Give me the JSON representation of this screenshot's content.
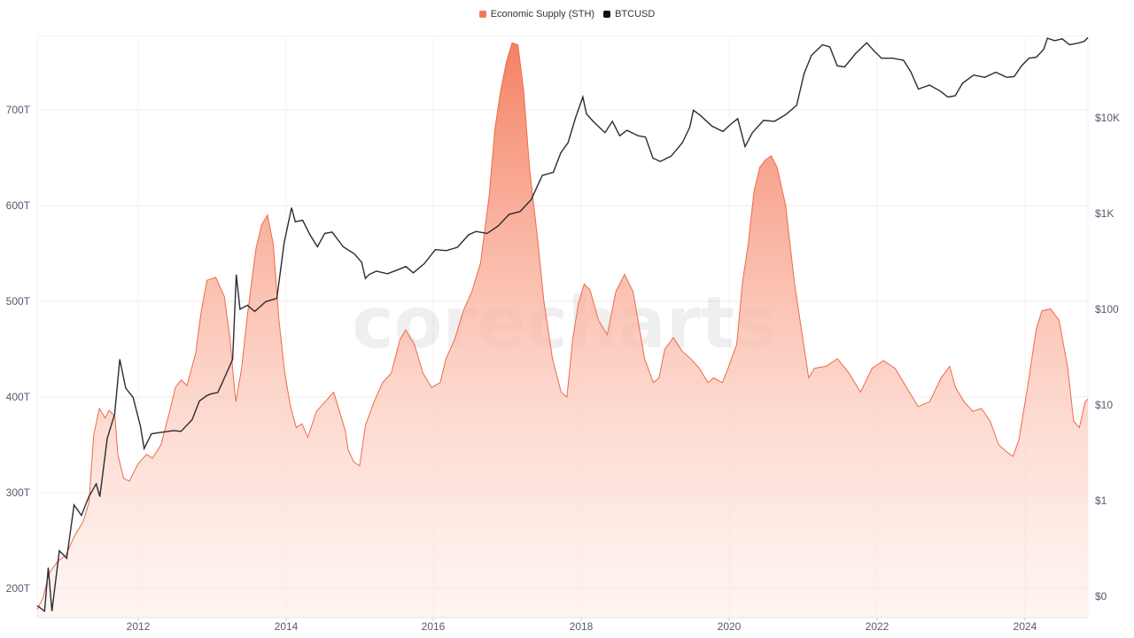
{
  "legend": {
    "items": [
      {
        "label": "Economic Supply (STH)",
        "color": "#f0785a"
      },
      {
        "label": "BTCUSD",
        "color": "#111111"
      }
    ]
  },
  "watermark": "corecharts",
  "axes": {
    "left_ticks": [
      "700T",
      "600T",
      "500T",
      "400T",
      "300T",
      "200T"
    ],
    "right_ticks": [
      "$10K",
      "$1K",
      "$100",
      "$10",
      "$1",
      "$0"
    ],
    "x_ticks": [
      "2012",
      "2014",
      "2016",
      "2018",
      "2020",
      "2022",
      "2024"
    ]
  },
  "chart_data": {
    "type": "area+line",
    "title": "",
    "xlabel": "",
    "ylabel_left": "Economic Supply (STH)",
    "ylabel_right": "BTCUSD (log)",
    "x_range": [
      2010.6,
      2024.85
    ],
    "ylim_left": [
      170,
      777
    ],
    "ylim_right_log": [
      0.07,
      200000
    ],
    "grid": true,
    "legend_position": "top-center",
    "series": [
      {
        "name": "Economic Supply (STH)",
        "axis": "left",
        "unit": "T",
        "color": "#f0785a",
        "points": [
          [
            2010.6,
            178
          ],
          [
            2010.7,
            190
          ],
          [
            2010.8,
            215
          ],
          [
            2010.95,
            228
          ],
          [
            2011.1,
            235
          ],
          [
            2011.25,
            255
          ],
          [
            2011.4,
            270
          ],
          [
            2011.5,
            290
          ],
          [
            2011.58,
            360
          ],
          [
            2011.68,
            388
          ],
          [
            2011.78,
            378
          ],
          [
            2011.85,
            386
          ],
          [
            2011.95,
            380
          ],
          [
            2012.0,
            340
          ],
          [
            2012.1,
            315
          ],
          [
            2012.2,
            312
          ],
          [
            2012.35,
            330
          ],
          [
            2012.5,
            340
          ],
          [
            2012.6,
            336
          ],
          [
            2012.75,
            350
          ],
          [
            2012.9,
            385
          ],
          [
            2013.0,
            410
          ],
          [
            2013.1,
            418
          ],
          [
            2013.2,
            412
          ],
          [
            2013.35,
            445
          ],
          [
            2013.45,
            490
          ],
          [
            2013.55,
            522
          ],
          [
            2013.7,
            525
          ],
          [
            2013.85,
            505
          ],
          [
            2013.95,
            460
          ],
          [
            2014.0,
            425
          ],
          [
            2014.05,
            395
          ],
          [
            2014.15,
            430
          ],
          [
            2014.25,
            485
          ],
          [
            2014.4,
            555
          ],
          [
            2014.5,
            580
          ],
          [
            2014.6,
            590
          ],
          [
            2014.7,
            560
          ],
          [
            2014.8,
            480
          ],
          [
            2014.9,
            425
          ],
          [
            2015.0,
            390
          ],
          [
            2015.1,
            368
          ],
          [
            2015.2,
            372
          ],
          [
            2015.3,
            358
          ],
          [
            2015.45,
            385
          ],
          [
            2015.6,
            395
          ],
          [
            2015.75,
            405
          ],
          [
            2015.85,
            385
          ],
          [
            2015.95,
            365
          ],
          [
            2016.0,
            345
          ],
          [
            2016.1,
            332
          ],
          [
            2016.2,
            328
          ],
          [
            2016.3,
            370
          ],
          [
            2016.45,
            395
          ],
          [
            2016.6,
            415
          ],
          [
            2016.75,
            425
          ],
          [
            2016.9,
            460
          ],
          [
            2017.0,
            470
          ],
          [
            2017.15,
            455
          ],
          [
            2017.3,
            425
          ],
          [
            2017.45,
            410
          ],
          [
            2017.6,
            415
          ],
          [
            2017.7,
            440
          ],
          [
            2017.85,
            460
          ],
          [
            2018.0,
            490
          ],
          [
            2018.15,
            510
          ],
          [
            2018.3,
            540
          ],
          [
            2018.45,
            610
          ],
          [
            2018.55,
            680
          ],
          [
            2018.65,
            720
          ],
          [
            2018.75,
            750
          ],
          [
            2018.85,
            770
          ],
          [
            2018.95,
            768
          ],
          [
            2019.05,
            720
          ],
          [
            2019.15,
            640
          ],
          [
            2019.3,
            560
          ],
          [
            2019.4,
            500
          ],
          [
            2019.55,
            440
          ],
          [
            2019.7,
            405
          ],
          [
            2019.8,
            400
          ],
          [
            2019.9,
            460
          ],
          [
            2020.0,
            498
          ],
          [
            2020.1,
            518
          ],
          [
            2020.2,
            512
          ],
          [
            2020.35,
            480
          ],
          [
            2020.5,
            465
          ],
          [
            2020.65,
            510
          ],
          [
            2020.8,
            528
          ],
          [
            2020.95,
            510
          ],
          [
            2021.05,
            475
          ],
          [
            2021.15,
            440
          ],
          [
            2021.3,
            415
          ],
          [
            2021.4,
            420
          ],
          [
            2021.5,
            450
          ],
          [
            2021.65,
            462
          ],
          [
            2021.8,
            448
          ],
          [
            2021.95,
            440
          ],
          [
            2022.1,
            430
          ],
          [
            2022.25,
            415
          ],
          [
            2022.35,
            420
          ],
          [
            2022.5,
            415
          ],
          [
            2022.6,
            430
          ],
          [
            2022.75,
            455
          ],
          [
            2022.85,
            520
          ],
          [
            2022.95,
            560
          ],
          [
            2023.05,
            615
          ],
          [
            2023.15,
            640
          ],
          [
            2023.25,
            648
          ],
          [
            2023.35,
            652
          ],
          [
            2023.45,
            640
          ],
          [
            2023.6,
            600
          ],
          [
            2023.75,
            520
          ],
          [
            2023.9,
            460
          ],
          [
            2024.0,
            420
          ],
          [
            2024.1,
            430
          ],
          [
            2024.3,
            432
          ],
          [
            2024.5,
            440
          ],
          [
            2024.7,
            425
          ],
          [
            2024.9,
            405
          ],
          [
            2025.1,
            430
          ],
          [
            2025.3,
            438
          ],
          [
            2025.5,
            430
          ],
          [
            2025.7,
            410
          ],
          [
            2025.9,
            390
          ],
          [
            2026.1,
            395
          ],
          [
            2026.3,
            420
          ],
          [
            2026.45,
            432
          ],
          [
            2026.55,
            410
          ],
          [
            2026.7,
            395
          ],
          [
            2026.85,
            385
          ],
          [
            2027.0,
            388
          ],
          [
            2027.15,
            375
          ],
          [
            2027.3,
            350
          ],
          [
            2027.45,
            342
          ],
          [
            2027.55,
            338
          ],
          [
            2027.65,
            355
          ],
          [
            2027.8,
            410
          ],
          [
            2027.95,
            470
          ],
          [
            2028.05,
            490
          ],
          [
            2028.2,
            492
          ],
          [
            2028.35,
            480
          ],
          [
            2028.5,
            430
          ],
          [
            2028.6,
            375
          ],
          [
            2028.7,
            368
          ],
          [
            2028.8,
            395
          ],
          [
            2028.85,
            398
          ]
        ]
      },
      {
        "name": "BTCUSD",
        "axis": "right",
        "unit": "USD",
        "color": "#2b2b33",
        "points": [
          [
            2010.6,
            0.08
          ],
          [
            2010.7,
            0.07
          ],
          [
            2010.75,
            0.2
          ],
          [
            2010.8,
            0.07
          ],
          [
            2010.9,
            0.3
          ],
          [
            2011.0,
            0.25
          ],
          [
            2011.1,
            0.9
          ],
          [
            2011.2,
            0.7
          ],
          [
            2011.3,
            1.1
          ],
          [
            2011.4,
            1.5
          ],
          [
            2011.45,
            1.1
          ],
          [
            2011.55,
            4.5
          ],
          [
            2011.65,
            8
          ],
          [
            2011.72,
            30
          ],
          [
            2011.8,
            15
          ],
          [
            2011.9,
            12
          ],
          [
            2012.0,
            6
          ],
          [
            2012.05,
            3.5
          ],
          [
            2012.15,
            5
          ],
          [
            2012.3,
            5.2
          ],
          [
            2012.45,
            5.4
          ],
          [
            2012.55,
            5.3
          ],
          [
            2012.7,
            7
          ],
          [
            2012.8,
            11
          ],
          [
            2012.9,
            12.5
          ],
          [
            2012.95,
            13
          ],
          [
            2013.05,
            13.5
          ],
          [
            2013.15,
            20
          ],
          [
            2013.25,
            30
          ],
          [
            2013.3,
            230
          ],
          [
            2013.35,
            100
          ],
          [
            2013.45,
            110
          ],
          [
            2013.55,
            95
          ],
          [
            2013.7,
            120
          ],
          [
            2013.85,
            130
          ],
          [
            2013.95,
            500
          ],
          [
            2014.05,
            1150
          ],
          [
            2014.1,
            820
          ],
          [
            2014.2,
            850
          ],
          [
            2014.3,
            600
          ],
          [
            2014.4,
            450
          ],
          [
            2014.5,
            620
          ],
          [
            2014.6,
            640
          ],
          [
            2014.75,
            450
          ],
          [
            2014.9,
            380
          ],
          [
            2015.0,
            310
          ],
          [
            2015.05,
            210
          ],
          [
            2015.1,
            230
          ],
          [
            2015.2,
            250
          ],
          [
            2015.35,
            235
          ],
          [
            2015.5,
            260
          ],
          [
            2015.6,
            280
          ],
          [
            2015.7,
            240
          ],
          [
            2015.85,
            300
          ],
          [
            2016.0,
            420
          ],
          [
            2016.15,
            410
          ],
          [
            2016.3,
            445
          ],
          [
            2016.45,
            600
          ],
          [
            2016.55,
            650
          ],
          [
            2016.7,
            620
          ],
          [
            2016.85,
            740
          ],
          [
            2017.0,
            980
          ],
          [
            2017.15,
            1050
          ],
          [
            2017.3,
            1400
          ],
          [
            2017.45,
            2500
          ],
          [
            2017.6,
            2700
          ],
          [
            2017.7,
            4300
          ],
          [
            2017.8,
            5500
          ],
          [
            2017.9,
            10000
          ],
          [
            2018.0,
            16500
          ],
          [
            2018.05,
            11000
          ],
          [
            2018.15,
            9000
          ],
          [
            2018.3,
            7000
          ],
          [
            2018.4,
            9200
          ],
          [
            2018.5,
            6500
          ],
          [
            2018.6,
            7400
          ],
          [
            2018.75,
            6500
          ],
          [
            2018.85,
            6300
          ],
          [
            2018.95,
            3800
          ],
          [
            2019.05,
            3500
          ],
          [
            2019.2,
            4000
          ],
          [
            2019.35,
            5500
          ],
          [
            2019.45,
            8000
          ],
          [
            2019.5,
            12000
          ],
          [
            2019.6,
            10500
          ],
          [
            2019.75,
            8200
          ],
          [
            2019.9,
            7200
          ],
          [
            2020.0,
            8500
          ],
          [
            2020.1,
            9800
          ],
          [
            2020.2,
            5000
          ],
          [
            2020.3,
            7000
          ],
          [
            2020.45,
            9400
          ],
          [
            2020.6,
            9200
          ],
          [
            2020.75,
            10800
          ],
          [
            2020.9,
            13500
          ],
          [
            2021.0,
            29000
          ],
          [
            2021.1,
            45000
          ],
          [
            2021.25,
            58000
          ],
          [
            2021.35,
            55000
          ],
          [
            2021.45,
            35000
          ],
          [
            2021.55,
            34000
          ],
          [
            2021.7,
            47000
          ],
          [
            2021.85,
            61000
          ],
          [
            2021.95,
            50000
          ],
          [
            2022.05,
            42000
          ],
          [
            2022.2,
            42000
          ],
          [
            2022.35,
            40000
          ],
          [
            2022.45,
            30000
          ],
          [
            2022.55,
            20000
          ],
          [
            2022.7,
            22000
          ],
          [
            2022.85,
            19000
          ],
          [
            2022.95,
            16500
          ],
          [
            2023.05,
            17000
          ],
          [
            2023.15,
            23000
          ],
          [
            2023.3,
            28000
          ],
          [
            2023.45,
            26500
          ],
          [
            2023.6,
            30000
          ],
          [
            2023.75,
            26500
          ],
          [
            2023.85,
            27000
          ],
          [
            2023.95,
            35000
          ],
          [
            2024.05,
            42000
          ],
          [
            2024.15,
            43000
          ],
          [
            2024.25,
            52000
          ],
          [
            2024.3,
            68000
          ],
          [
            2024.4,
            64000
          ],
          [
            2024.5,
            67000
          ],
          [
            2024.6,
            58000
          ],
          [
            2024.7,
            60000
          ],
          [
            2024.8,
            63000
          ],
          [
            2024.85,
            69000
          ]
        ]
      }
    ]
  }
}
